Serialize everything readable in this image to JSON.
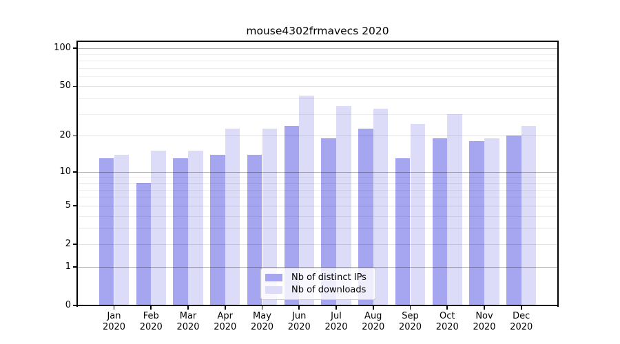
{
  "title": "mouse4302frmavecs 2020",
  "chart_data": {
    "type": "bar",
    "title": "mouse4302frmavecs 2020",
    "categories": [
      "Jan",
      "Feb",
      "Mar",
      "Apr",
      "May",
      "Jun",
      "Jul",
      "Aug",
      "Sep",
      "Oct",
      "Nov",
      "Dec"
    ],
    "x_year_label": "2020",
    "series": [
      {
        "name": "Nb of distinct IPs",
        "color": "#a5a5f0",
        "values": [
          13,
          8,
          13,
          14,
          14,
          24,
          19,
          23,
          13,
          19,
          18,
          20
        ]
      },
      {
        "name": "Nb of downloads",
        "color": "#dcdcf9",
        "values": [
          14,
          15,
          15,
          23,
          23,
          42,
          35,
          33,
          25,
          30,
          19,
          24
        ]
      }
    ],
    "y_scale": "log1p",
    "ylim": [
      0,
      112
    ],
    "y_major_ticks": [
      100,
      50,
      20,
      10,
      5,
      2,
      1,
      0
    ],
    "y_emphasized_gridlines": [
      1,
      10,
      100
    ],
    "y_minor_gridlines": [
      3,
      4,
      6,
      7,
      8,
      9,
      30,
      40,
      60,
      70,
      80,
      90
    ],
    "grid": true,
    "legend_position": "lower center",
    "xlabel": "",
    "ylabel": ""
  }
}
